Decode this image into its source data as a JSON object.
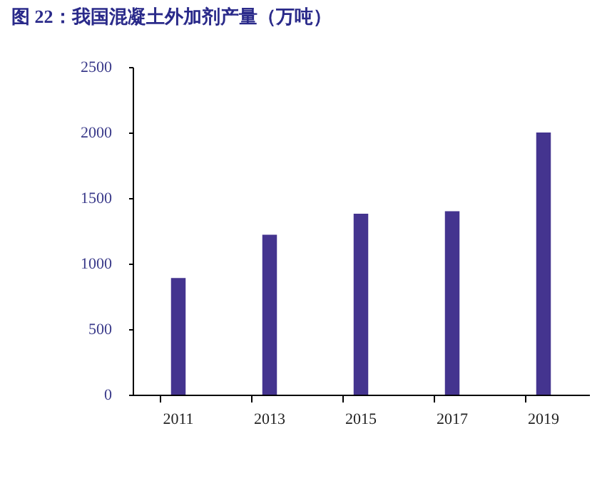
{
  "chart_data": {
    "type": "bar",
    "title": "图 22：我国混凝土外加剂产量（万吨）",
    "categories": [
      "2011",
      "2013",
      "2015",
      "2017",
      "2019"
    ],
    "values": [
      890,
      1220,
      1380,
      1400,
      2000
    ],
    "color": "#44348f",
    "ylim": [
      0,
      2500
    ],
    "yticks": [
      0,
      500,
      1000,
      1500,
      2000,
      2500
    ],
    "grid": false
  }
}
